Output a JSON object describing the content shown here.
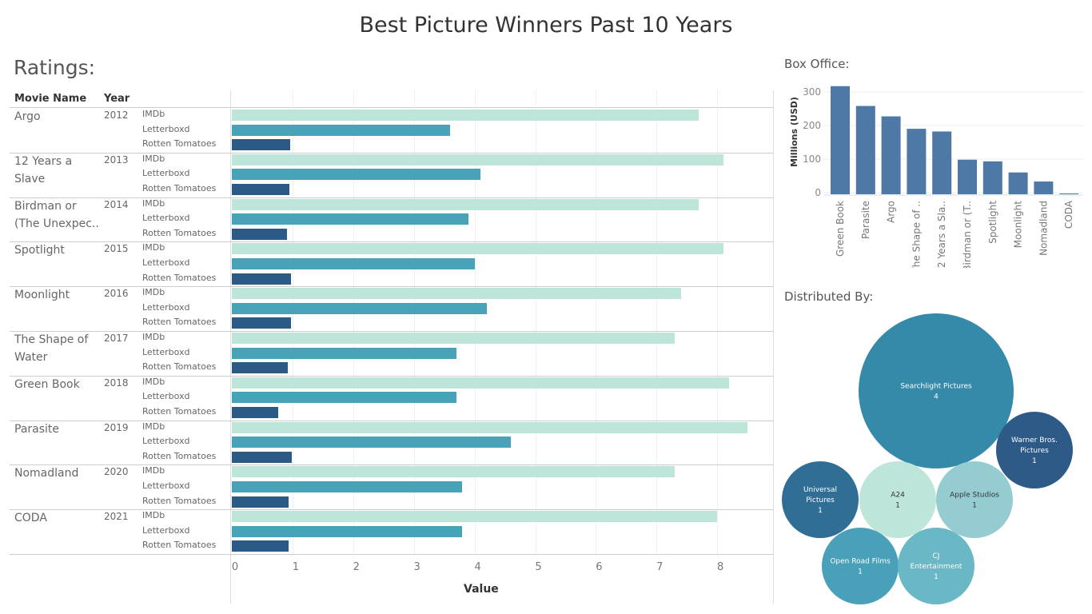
{
  "title": "Best Picture Winners Past 10 Years",
  "ratings": {
    "heading": "Ratings:",
    "col_movie": "Movie Name",
    "col_year": "Year",
    "sources": [
      "IMDb",
      "Letterboxd",
      "Rotten Tomatoes"
    ],
    "colors": {
      "IMDb": "#bde5da",
      "Letterboxd": "#48a2b8",
      "Rotten Tomatoes": "#2c5a87"
    }
  },
  "chart_data": [
    {
      "type": "bar",
      "orientation": "horizontal",
      "xlabel": "Value",
      "xlim": [
        0,
        8.9
      ],
      "xticks": [
        "0",
        "1",
        "2",
        "3",
        "4",
        "5",
        "6",
        "7",
        "8"
      ],
      "rows": [
        {
          "movie": "Argo",
          "movie_lines": [
            "Argo"
          ],
          "year": "2012",
          "values": [
            7.7,
            3.6,
            0.96
          ]
        },
        {
          "movie": "12 Years a Slave",
          "movie_lines": [
            "12 Years a",
            "Slave"
          ],
          "year": "2013",
          "values": [
            8.1,
            4.1,
            0.95
          ]
        },
        {
          "movie": "Birdman or (The Unexpected Virtue of Ignorance)",
          "movie_lines": [
            "Birdman or",
            "(The Unexpec.."
          ],
          "year": "2014",
          "values": [
            7.7,
            3.9,
            0.91
          ]
        },
        {
          "movie": "Spotlight",
          "movie_lines": [
            "Spotlight"
          ],
          "year": "2015",
          "values": [
            8.1,
            4.0,
            0.97
          ]
        },
        {
          "movie": "Moonlight",
          "movie_lines": [
            "Moonlight"
          ],
          "year": "2016",
          "values": [
            7.4,
            4.2,
            0.98
          ]
        },
        {
          "movie": "The Shape of Water",
          "movie_lines": [
            "The Shape of",
            "Water"
          ],
          "year": "2017",
          "values": [
            7.3,
            3.7,
            0.92
          ]
        },
        {
          "movie": "Green Book",
          "movie_lines": [
            "Green Book"
          ],
          "year": "2018",
          "values": [
            8.2,
            3.7,
            0.77
          ]
        },
        {
          "movie": "Parasite",
          "movie_lines": [
            "Parasite"
          ],
          "year": "2019",
          "values": [
            8.5,
            4.6,
            0.99
          ]
        },
        {
          "movie": "Nomadland",
          "movie_lines": [
            "Nomadland"
          ],
          "year": "2020",
          "values": [
            7.3,
            3.8,
            0.93
          ]
        },
        {
          "movie": "CODA",
          "movie_lines": [
            "CODA"
          ],
          "year": "2021",
          "values": [
            8.0,
            3.8,
            0.94
          ]
        }
      ]
    },
    {
      "type": "bar",
      "title": "Box Office:",
      "ylabel": "Millions (USD)",
      "ylim": [
        0,
        320
      ],
      "yticks": [
        "0",
        "100",
        "200",
        "300"
      ],
      "color": "#4e79a7",
      "categories": [
        "Green Book",
        "Parasite",
        "Argo",
        "The Shape of ..",
        "12 Years a Sla..",
        "Birdman or (T..",
        "Spotlight",
        "Moonlight",
        "Nomadland",
        "CODA"
      ],
      "values": [
        322,
        263,
        232,
        195,
        187,
        103,
        98,
        65,
        38,
        2
      ]
    },
    {
      "type": "bubble",
      "title": "Distributed By:",
      "items": [
        {
          "name_lines": [
            "Searchlight Pictures"
          ],
          "count": "4",
          "color": "#368aa9"
        },
        {
          "name_lines": [
            "Warner Bros.",
            "Pictures"
          ],
          "count": "1",
          "color": "#2d5a86"
        },
        {
          "name_lines": [
            "Universal",
            "Pictures"
          ],
          "count": "1",
          "color": "#306e96"
        },
        {
          "name_lines": [
            "A24"
          ],
          "count": "1",
          "color": "#bde5da"
        },
        {
          "name_lines": [
            "Apple Studios"
          ],
          "count": "1",
          "color": "#94ccd2"
        },
        {
          "name_lines": [
            "Open Road Films"
          ],
          "count": "1",
          "color": "#48a1b8"
        },
        {
          "name_lines": [
            "CJ",
            "Entertainment"
          ],
          "count": "1",
          "color": "#6ab7c5"
        }
      ]
    }
  ]
}
